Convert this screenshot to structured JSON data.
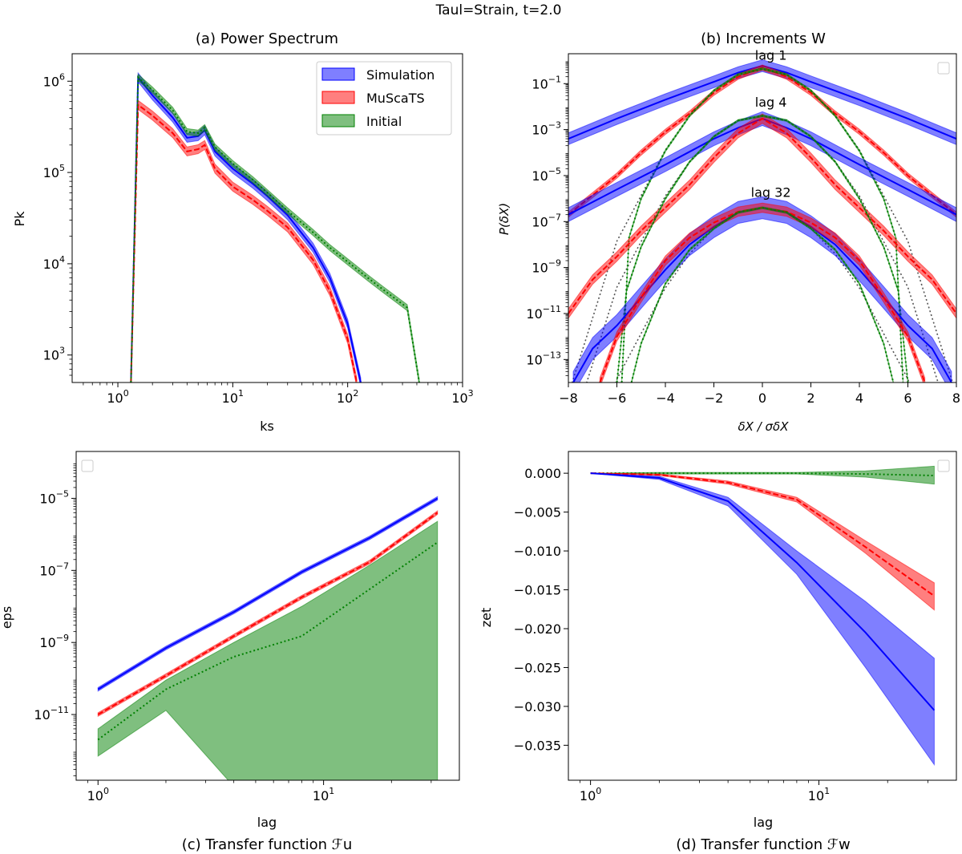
{
  "suptitle": "Taul=Strain, t=2.0",
  "colors": {
    "simulation": "#0000ff",
    "muscats": "#ff0000",
    "initial": "#008000",
    "reference": "#555555"
  },
  "chart_data": [
    {
      "id": "a",
      "type": "line",
      "title": "(a)  Power Spectrum",
      "xlabel": "ks",
      "ylabel": "Pk",
      "xscale": "log",
      "yscale": "log",
      "xlim": [
        0.4,
        1000
      ],
      "ylim": [
        500,
        2000000
      ],
      "xticks": [
        {
          "v": 1,
          "b": "10",
          "e": "0"
        },
        {
          "v": 10,
          "b": "10",
          "e": "1"
        },
        {
          "v": 100,
          "b": "10",
          "e": "2"
        },
        {
          "v": 1000,
          "b": "10",
          "e": "3"
        }
      ],
      "yticks": [
        {
          "v": 1000,
          "b": "10",
          "e": "3"
        },
        {
          "v": 10000,
          "b": "10",
          "e": "4"
        },
        {
          "v": 100000,
          "b": "10",
          "e": "5"
        },
        {
          "v": 1000000,
          "b": "10",
          "e": "6"
        }
      ],
      "legend": {
        "placement": "upper right",
        "entries": [
          "Simulation",
          "MuScaTS",
          "Initial"
        ]
      },
      "series": [
        {
          "name": "Simulation",
          "key": "simulation",
          "style": "solid",
          "band_factor": 1.12,
          "x": [
            1.3,
            1.5,
            2,
            3,
            4,
            5,
            5.7,
            7,
            10,
            15,
            20,
            30,
            50,
            70,
            100,
            130
          ],
          "y": [
            500,
            1100000,
            700000,
            400000,
            240000,
            250000,
            290000,
            170000,
            110000,
            75000,
            55000,
            34000,
            15000,
            7000,
            2200,
            500
          ]
        },
        {
          "name": "MuScaTS",
          "key": "muscats",
          "style": "dashed",
          "band_factor": 1.12,
          "x": [
            1.3,
            1.5,
            2,
            3,
            4,
            5,
            5.7,
            7,
            10,
            15,
            20,
            30,
            50,
            70,
            100,
            120
          ],
          "y": [
            500,
            550000,
            420000,
            270000,
            170000,
            180000,
            200000,
            110000,
            70000,
            50000,
            38000,
            25000,
            11000,
            5000,
            1500,
            500
          ]
        },
        {
          "name": "Initial",
          "key": "initial",
          "style": "dotted",
          "band_factor": 1.08,
          "x": [
            1.3,
            1.5,
            2,
            3,
            4,
            5,
            5.7,
            7,
            10,
            15,
            20,
            30,
            50,
            70,
            100,
            150,
            200,
            330,
            420
          ],
          "y": [
            500,
            1100000,
            800000,
            480000,
            280000,
            270000,
            310000,
            190000,
            125000,
            83000,
            60000,
            38000,
            22000,
            15000,
            10500,
            7000,
            5300,
            3300,
            500
          ]
        }
      ]
    },
    {
      "id": "b",
      "type": "line",
      "title": "(b)  Increments W",
      "xlabel": "δX / σδX",
      "ylabel": "P(δX)",
      "xscale": "linear",
      "yscale": "log",
      "xlim": [
        -8,
        8
      ],
      "ylim": [
        1e-14,
        2
      ],
      "xticks": [
        {
          "v": -8,
          "l": "−8"
        },
        {
          "v": -6,
          "l": "−6"
        },
        {
          "v": -4,
          "l": "−4"
        },
        {
          "v": -2,
          "l": "−2"
        },
        {
          "v": 0,
          "l": "0"
        },
        {
          "v": 2,
          "l": "2"
        },
        {
          "v": 4,
          "l": "4"
        },
        {
          "v": 6,
          "l": "6"
        },
        {
          "v": 8,
          "l": "8"
        }
      ],
      "yticks": [
        {
          "v": 1e-13,
          "b": "10",
          "e": "−13"
        },
        {
          "v": 1e-11,
          "b": "10",
          "e": "−11"
        },
        {
          "v": 1e-09,
          "b": "10",
          "e": "−9"
        },
        {
          "v": 1e-07,
          "b": "10",
          "e": "−7"
        },
        {
          "v": 1e-05,
          "b": "10",
          "e": "−5"
        },
        {
          "v": 0.001,
          "b": "10",
          "e": "−3"
        },
        {
          "v": 0.1,
          "b": "10",
          "e": "−1"
        }
      ],
      "legend": {
        "placement": "upper right",
        "entries": []
      },
      "annotations": [
        {
          "text": "lag 1",
          "x": 1.3,
          "y": 1.1
        },
        {
          "text": "lag 4",
          "x": 1.3,
          "y": 0.01
        },
        {
          "text": "lag 32",
          "x": 1.6,
          "y": 1.2e-06
        }
      ],
      "series": [
        {
          "key": "reference",
          "style": "dotted",
          "band_factor": 1,
          "x": [
            -8,
            -6,
            -4,
            -3,
            -2,
            -1,
            0,
            1,
            2,
            3,
            4,
            6,
            8
          ],
          "y": [
            3e-15,
            1.4e-08,
            0.00013,
            0.004,
            0.05,
            0.25,
            0.4,
            0.25,
            0.05,
            0.004,
            0.00013,
            1.4e-08,
            3e-15
          ]
        },
        {
          "key": "reference",
          "style": "dotted",
          "band_factor": 1,
          "x": [
            -8,
            -6,
            -4,
            -3,
            -2,
            -1,
            0,
            1,
            2,
            3,
            4,
            6,
            8
          ],
          "y": [
            3e-17,
            1.4e-10,
            1.3e-06,
            4e-05,
            0.0005,
            0.0025,
            0.004,
            0.0025,
            0.0005,
            4e-05,
            1.3e-06,
            1.4e-10,
            3e-17
          ]
        },
        {
          "key": "reference",
          "style": "dotted",
          "band_factor": 1,
          "x": [
            -8,
            -6,
            -4,
            -3,
            -2,
            -1,
            0,
            1,
            2,
            3,
            4,
            6,
            8
          ],
          "y": [
            3e-21,
            1.4e-14,
            1.3e-10,
            4e-09,
            5e-08,
            2.5e-07,
            4e-07,
            2.5e-07,
            5e-08,
            4e-09,
            1.3e-10,
            1.4e-14,
            3e-21
          ]
        },
        {
          "key": "simulation",
          "style": "solid",
          "band_factor": 1.8,
          "x": [
            -8,
            -6,
            -4,
            -2,
            -1,
            0,
            1,
            2,
            4,
            6,
            8
          ],
          "y": [
            0.0004,
            0.003,
            0.02,
            0.12,
            0.3,
            0.6,
            0.3,
            0.12,
            0.02,
            0.003,
            0.0004
          ]
        },
        {
          "key": "muscats",
          "style": "dashed",
          "band_factor": 1.3,
          "x": [
            -8,
            -6,
            -5,
            -4,
            -3,
            -2,
            -1,
            0,
            1,
            2,
            3,
            4,
            5,
            6,
            8
          ],
          "y": [
            2e-07,
            1e-05,
            0.0001,
            0.0008,
            0.005,
            0.04,
            0.2,
            0.5,
            0.2,
            0.04,
            0.005,
            0.0008,
            0.0001,
            1e-05,
            2e-07
          ]
        },
        {
          "key": "initial",
          "style": "dotted",
          "band_factor": 1.1,
          "x": [
            -5.8,
            -5.5,
            -5,
            -4,
            -3,
            -2,
            -1,
            0,
            1,
            2,
            3,
            4,
            5,
            5.5,
            5.8
          ],
          "y": [
            1e-14,
            2e-08,
            1e-06,
            0.00012,
            0.004,
            0.05,
            0.25,
            0.45,
            0.25,
            0.05,
            0.004,
            0.00012,
            1e-06,
            2e-08,
            1e-14
          ]
        },
        {
          "key": "simulation",
          "style": "solid",
          "band_factor": 2,
          "x": [
            -8,
            -6,
            -4,
            -2,
            -1,
            0,
            1,
            2,
            4,
            6,
            8
          ],
          "y": [
            2e-07,
            2.5e-06,
            3e-05,
            0.0004,
            0.0012,
            0.003,
            0.0012,
            0.0004,
            3e-05,
            2.5e-06,
            2e-07
          ]
        },
        {
          "key": "muscats",
          "style": "dashed",
          "band_factor": 1.6,
          "x": [
            -8,
            -7,
            -6,
            -5,
            -4,
            -3,
            -2,
            -1,
            0,
            1,
            2,
            3,
            4,
            5,
            6,
            7,
            8
          ],
          "y": [
            1e-11,
            3e-10,
            3e-09,
            4e-08,
            4e-07,
            4e-06,
            6e-05,
            0.0007,
            0.003,
            0.0007,
            6e-05,
            4e-06,
            4e-07,
            4e-08,
            3e-09,
            3e-10,
            1e-11
          ]
        },
        {
          "key": "initial",
          "style": "dotted",
          "band_factor": 1.1,
          "x": [
            -6.0,
            -5.6,
            -5,
            -4,
            -3,
            -2,
            -1,
            0,
            1,
            2,
            3,
            4,
            5,
            5.6,
            6.0
          ],
          "y": [
            1e-14,
            1e-10,
            8e-09,
            1e-06,
            4e-05,
            0.0005,
            0.0025,
            0.004,
            0.0025,
            0.0005,
            4e-05,
            1e-06,
            8e-09,
            1e-10,
            1e-14
          ]
        },
        {
          "key": "simulation",
          "style": "solid",
          "band_factor": 3,
          "x": [
            -7.8,
            -7,
            -6,
            -5,
            -4,
            -3,
            -2,
            -1,
            0,
            1,
            2,
            3,
            4,
            5,
            6,
            7,
            7.8
          ],
          "y": [
            1e-14,
            3e-13,
            3e-12,
            5e-11,
            8e-10,
            1e-08,
            6e-08,
            2.5e-07,
            4e-07,
            2.5e-07,
            6e-08,
            1e-08,
            8e-10,
            5e-11,
            3e-12,
            3e-13,
            1e-14
          ]
        },
        {
          "key": "muscats",
          "style": "dashed",
          "band_factor": 1.6,
          "x": [
            -6.7,
            -6,
            -5,
            -4,
            -3,
            -2,
            -1,
            0,
            1,
            2,
            3,
            4,
            5,
            6,
            6.7
          ],
          "y": [
            1e-14,
            1e-12,
            5e-11,
            2e-09,
            2e-08,
            9e-08,
            2.7e-07,
            4e-07,
            2.7e-07,
            9e-08,
            2e-08,
            2e-09,
            5e-11,
            1e-12,
            1e-14
          ]
        },
        {
          "key": "initial",
          "style": "dotted",
          "band_factor": 1.1,
          "x": [
            -5.4,
            -5,
            -4,
            -3,
            -2,
            -1,
            0,
            1,
            2,
            3,
            4,
            5,
            5.4
          ],
          "y": [
            1e-14,
            5e-13,
            2e-10,
            6e-09,
            5e-08,
            2.5e-07,
            4e-07,
            2.5e-07,
            5e-08,
            6e-09,
            2e-10,
            5e-13,
            1e-14
          ]
        }
      ]
    },
    {
      "id": "c",
      "type": "line",
      "title": "(c)  Transfer function ℱu",
      "xlabel": "lag",
      "ylabel": "eps",
      "xscale": "log",
      "yscale": "log",
      "xlim": [
        0.8,
        40
      ],
      "ylim": [
        1.5e-13,
        0.0002
      ],
      "xticks": [
        {
          "v": 1,
          "b": "10",
          "e": "0"
        },
        {
          "v": 10,
          "b": "10",
          "e": "1"
        }
      ],
      "yticks": [
        {
          "v": 1e-11,
          "b": "10",
          "e": "−11"
        },
        {
          "v": 1e-09,
          "b": "10",
          "e": "−9"
        },
        {
          "v": 1e-07,
          "b": "10",
          "e": "−7"
        },
        {
          "v": 1e-05,
          "b": "10",
          "e": "−5"
        }
      ],
      "legend": {
        "placement": "upper left",
        "entries": []
      },
      "series": [
        {
          "key": "initial",
          "style": "dotted",
          "band": true,
          "x": [
            1,
            2,
            4,
            8,
            16,
            32
          ],
          "y": [
            2e-12,
            5e-11,
            4e-10,
            1.5e-09,
            3e-08,
            6e-07
          ],
          "upper": [
            4e-12,
            9e-11,
            1e-09,
            1e-08,
            1.4e-07,
            2.3e-06
          ],
          "lower": [
            7e-13,
            1.3e-11,
            1e-13,
            1e-13,
            1e-13,
            1e-13
          ]
        },
        {
          "key": "muscats",
          "style": "dashed",
          "band_factor": 1.12,
          "x": [
            1,
            2,
            4,
            8,
            16,
            32
          ],
          "y": [
            1e-11,
            1.2e-10,
            1.5e-09,
            1.8e-08,
            1.7e-07,
            4e-06
          ]
        },
        {
          "key": "simulation",
          "style": "solid",
          "band_factor": 1.12,
          "x": [
            1,
            2,
            4,
            8,
            16,
            32
          ],
          "y": [
            5e-11,
            7e-10,
            7e-09,
            9e-08,
            8e-07,
            1e-05
          ]
        }
      ]
    },
    {
      "id": "d",
      "type": "line",
      "title": "(d)  Transfer function ℱw",
      "xlabel": "lag",
      "ylabel": "zet",
      "xscale": "log",
      "yscale": "linear",
      "xlim": [
        0.8,
        40
      ],
      "ylim": [
        -0.0395,
        0.0028
      ],
      "xticks": [
        {
          "v": 1,
          "b": "10",
          "e": "0"
        },
        {
          "v": 10,
          "b": "10",
          "e": "1"
        }
      ],
      "yticks": [
        {
          "v": 0,
          "l": "0.000"
        },
        {
          "v": -0.005,
          "l": "−0.005"
        },
        {
          "v": -0.01,
          "l": "−0.010"
        },
        {
          "v": -0.015,
          "l": "−0.015"
        },
        {
          "v": -0.02,
          "l": "−0.020"
        },
        {
          "v": -0.025,
          "l": "−0.025"
        },
        {
          "v": -0.03,
          "l": "−0.030"
        },
        {
          "v": -0.035,
          "l": "−0.035"
        }
      ],
      "legend": {
        "placement": "upper right",
        "entries": []
      },
      "series": [
        {
          "key": "initial",
          "style": "dotted",
          "band": true,
          "x": [
            1,
            2,
            4,
            8,
            16,
            32
          ],
          "y": [
            0,
            0,
            0,
            0,
            -0.0001,
            -0.0003
          ],
          "upper": [
            0,
            0.0001,
            0.0001,
            0.0001,
            0.0003,
            0.0009
          ],
          "lower": [
            0,
            -0.0001,
            -0.0001,
            -0.0001,
            -0.0005,
            -0.0014
          ]
        },
        {
          "key": "muscats",
          "style": "dashed",
          "band": true,
          "x": [
            1,
            2,
            4,
            8,
            16,
            32
          ],
          "y": [
            0,
            -0.0002,
            -0.0012,
            -0.0034,
            -0.0095,
            -0.0158
          ],
          "upper": [
            0,
            -0.0001,
            -0.001,
            -0.0031,
            -0.0087,
            -0.0141
          ],
          "lower": [
            0,
            -0.0003,
            -0.0014,
            -0.0037,
            -0.0103,
            -0.0176
          ]
        },
        {
          "key": "simulation",
          "style": "solid",
          "band": true,
          "x": [
            1,
            2,
            4,
            8,
            16,
            32
          ],
          "y": [
            0,
            -0.0006,
            -0.0036,
            -0.0115,
            -0.0205,
            -0.0305
          ],
          "upper": [
            0,
            -0.0004,
            -0.0031,
            -0.01,
            -0.0165,
            -0.0238
          ],
          "lower": [
            0,
            -0.0008,
            -0.0042,
            -0.013,
            -0.025,
            -0.0375
          ]
        }
      ]
    }
  ]
}
